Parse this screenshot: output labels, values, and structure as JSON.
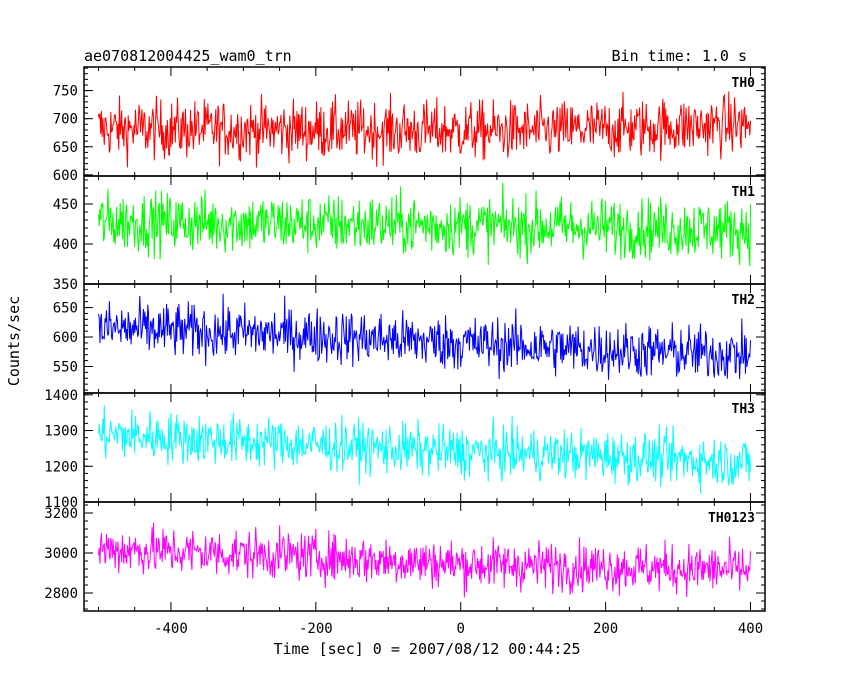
{
  "chart_data": {
    "type": "line",
    "title": "ae070812004425_wam0_trn",
    "subtitle": "Bin time: 1.0 s",
    "xlabel": "Time [sec] 0 = 2007/08/12 00:44:25",
    "ylabel": "Counts/sec",
    "xlim": [
      -520,
      420
    ],
    "xticks": [
      -400,
      -200,
      0,
      200,
      400
    ],
    "x_range": [
      -500,
      400
    ],
    "bin_time": 1.0,
    "panels": [
      {
        "name": "TH0",
        "color": "#ff0000",
        "ylim": [
          598,
          792
        ],
        "yticks": [
          600,
          650,
          700,
          750
        ],
        "trend": [
          [
            -500,
            682
          ],
          [
            -200,
            680
          ],
          [
            100,
            678
          ],
          [
            400,
            690
          ]
        ],
        "noise": 28
      },
      {
        "name": "TH1",
        "color": "#00ff00",
        "ylim": [
          350,
          485
        ],
        "yticks": [
          350,
          400,
          450
        ],
        "trend": [
          [
            -500,
            428
          ],
          [
            -200,
            425
          ],
          [
            100,
            422
          ],
          [
            400,
            418
          ]
        ],
        "noise": 20
      },
      {
        "name": "TH2",
        "color": "#0000ff",
        "ylim": [
          505,
          690
        ],
        "yticks": [
          550,
          600,
          650
        ],
        "trend": [
          [
            -500,
            615
          ],
          [
            -250,
            605
          ],
          [
            0,
            590
          ],
          [
            200,
            578
          ],
          [
            400,
            570
          ]
        ],
        "noise": 25
      },
      {
        "name": "TH3",
        "color": "#00ffff",
        "ylim": [
          1100,
          1405
        ],
        "yticks": [
          1100,
          1200,
          1300,
          1400
        ],
        "trend": [
          [
            -500,
            1290
          ],
          [
            -250,
            1265
          ],
          [
            0,
            1240
          ],
          [
            200,
            1230
          ],
          [
            400,
            1210
          ]
        ],
        "noise": 38
      },
      {
        "name": "TH0123",
        "color": "#ff00ff",
        "ylim": [
          2710,
          3255
        ],
        "yticks": [
          2800,
          3000,
          3200
        ],
        "trend": [
          [
            -500,
            3020
          ],
          [
            -250,
            2990
          ],
          [
            0,
            2945
          ],
          [
            200,
            2930
          ],
          [
            400,
            2915
          ]
        ],
        "noise": 65
      }
    ]
  }
}
